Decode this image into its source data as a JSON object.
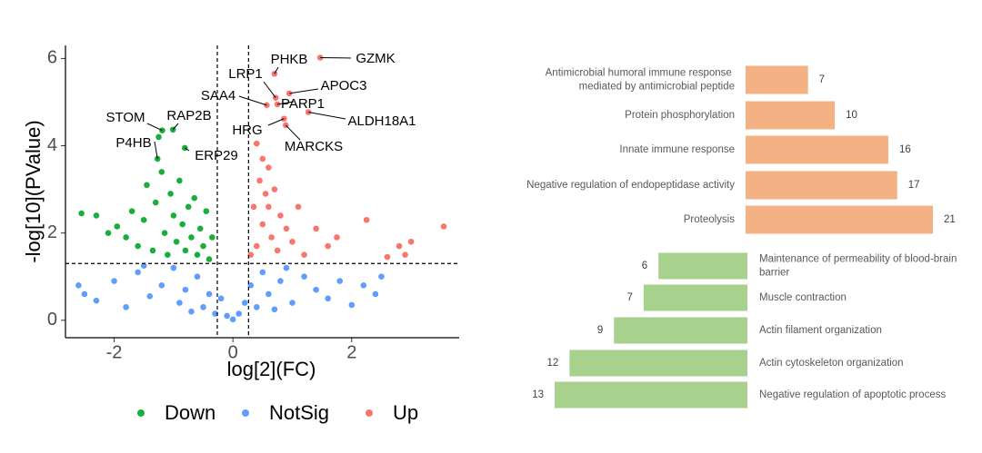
{
  "chart_data": [
    {
      "type": "scatter",
      "x_label": "log[2](FC)",
      "y_label": "-log[10](PValue)",
      "xlim": [
        -2.82,
        3.81
      ],
      "ylim": [
        -0.4,
        6.3
      ],
      "xticks": [
        -2,
        0,
        2
      ],
      "yticks": [
        0,
        2,
        4,
        6
      ],
      "cutoffs": {
        "x": [
          -0.263,
          0.263
        ],
        "y": 1.301
      },
      "legend": "bottom",
      "series": [
        {
          "name": "Down",
          "color": "#1aae3c",
          "x": [
            -1.19,
            -1.01,
            -1.27,
            -0.81,
            -2.55,
            -2.3,
            -2.1,
            -1.95,
            -1.8,
            -1.7,
            -1.6,
            -1.5,
            -1.45,
            -1.35,
            -1.3,
            -1.2,
            -1.15,
            -1.1,
            -1.05,
            -1.0,
            -0.95,
            -0.9,
            -0.85,
            -0.8,
            -0.75,
            -0.7,
            -0.65,
            -0.6,
            -0.55,
            -0.5,
            -0.45,
            -0.4,
            -0.35,
            -1.25
          ],
          "values": [
            4.35,
            4.37,
            3.7,
            3.95,
            2.45,
            2.4,
            2.0,
            2.15,
            1.9,
            2.5,
            1.7,
            2.3,
            3.1,
            1.6,
            2.7,
            3.4,
            2.0,
            1.5,
            2.9,
            2.4,
            1.8,
            3.2,
            2.2,
            1.6,
            2.6,
            1.9,
            2.8,
            1.5,
            2.1,
            1.7,
            2.5,
            1.4,
            1.9,
            4.2
          ],
          "point_labels": [
            "STOM",
            "RAP2B",
            "P4HB",
            "ERP29",
            null,
            null,
            null,
            null,
            null,
            null,
            null,
            null,
            null,
            null,
            null,
            null,
            null,
            null,
            null,
            null,
            null,
            null,
            null,
            null,
            null,
            null,
            null,
            null,
            null,
            null,
            null,
            null,
            null,
            null
          ]
        },
        {
          "name": "NotSig",
          "color": "#619cff",
          "x": [
            -2.6,
            -2.5,
            -2.3,
            -2.0,
            -1.8,
            -1.6,
            -1.4,
            -1.2,
            -1.0,
            -0.9,
            -0.8,
            -0.6,
            -0.5,
            -0.4,
            -0.3,
            -0.2,
            -0.1,
            0,
            0.1,
            0.2,
            0.3,
            0.4,
            0.5,
            0.6,
            0.8,
            1.0,
            1.2,
            1.4,
            1.6,
            1.8,
            2.0,
            2.2,
            2.4,
            2.5,
            -1.5,
            0.9,
            -0.7,
            0.7
          ],
          "values": [
            0.8,
            0.6,
            0.45,
            0.9,
            0.3,
            1.1,
            0.55,
            0.8,
            1.2,
            0.4,
            0.7,
            1.0,
            0.3,
            0.6,
            0.15,
            0.5,
            0.1,
            0.02,
            0.15,
            0.4,
            0.8,
            0.3,
            1.1,
            0.6,
            0.9,
            0.4,
            1.0,
            0.7,
            0.5,
            0.9,
            0.35,
            0.8,
            0.6,
            1.0,
            1.25,
            1.2,
            0.2,
            0.25
          ]
        },
        {
          "name": "Up",
          "color": "#f8766d",
          "x": [
            1.47,
            0.7,
            0.72,
            0.95,
            0.57,
            0.75,
            1.27,
            0.86,
            0.89,
            0.4,
            0.5,
            0.6,
            0.45,
            0.55,
            0.7,
            0.35,
            0.8,
            0.5,
            0.65,
            0.4,
            0.9,
            0.3,
            0.75,
            1.0,
            1.2,
            1.4,
            1.6,
            1.75,
            2.25,
            2.6,
            2.8,
            2.9,
            3.0,
            3.55,
            1.1,
            0.6
          ],
          "values": [
            6.02,
            5.65,
            5.1,
            5.2,
            4.93,
            4.95,
            4.77,
            4.62,
            4.47,
            4.05,
            3.7,
            3.5,
            3.2,
            2.9,
            3.0,
            2.6,
            2.4,
            2.2,
            1.9,
            1.7,
            2.1,
            1.5,
            1.6,
            1.8,
            1.5,
            2.1,
            1.7,
            1.9,
            2.3,
            1.45,
            1.7,
            1.5,
            1.8,
            2.15,
            2.6,
            2.6
          ],
          "point_labels": [
            "GZMK",
            "PHKB",
            "LRP1",
            "APOC3",
            "SAA4",
            "PARP1",
            "ALDH18A1",
            "HRG",
            "MARCKS",
            null,
            null,
            null,
            null,
            null,
            null,
            null,
            null,
            null,
            null,
            null,
            null,
            null,
            null,
            null,
            null,
            null,
            null,
            null,
            null,
            null,
            null,
            null,
            null,
            null,
            null,
            null
          ]
        }
      ]
    },
    {
      "type": "bar",
      "orientation": "horizontal",
      "groups": [
        {
          "color": "#f4b183",
          "direction": "right",
          "categories": [
            "Antimicrobial humoral immune response mediated by antimicrobial peptide",
            "Protein phosphorylation",
            "Innate immune response",
            "Negative regulation of endopeptidase activity",
            "Proteolysis"
          ],
          "values": [
            7,
            10,
            16,
            17,
            21
          ]
        },
        {
          "color": "#a9d18e",
          "direction": "left",
          "categories": [
            "Maintenance of permeability of blood-brain barrier",
            "Muscle contraction",
            "Actin filament organization",
            "Actin cytoskeleton organization",
            "Negative regulation of apoptotic process"
          ],
          "values": [
            6,
            7,
            9,
            12,
            13
          ]
        }
      ]
    }
  ]
}
